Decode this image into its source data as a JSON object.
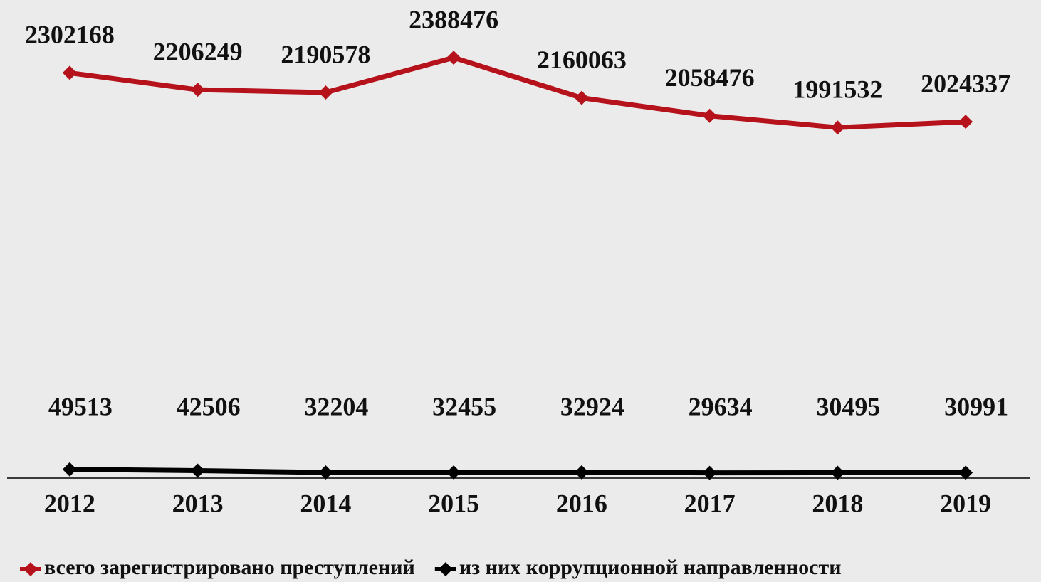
{
  "chart_data": {
    "type": "line",
    "categories": [
      "2012",
      "2013",
      "2014",
      "2015",
      "2016",
      "2017",
      "2018",
      "2019"
    ],
    "series": [
      {
        "name": "всего зарегистрировано преступлений",
        "color": "#b5121b",
        "values": [
          2302168,
          2206249,
          2190578,
          2388476,
          2160063,
          2058476,
          1991532,
          2024337
        ]
      },
      {
        "name": "из них коррупционной направленности",
        "color": "#000000",
        "values": [
          49513,
          42506,
          32204,
          32455,
          32924,
          29634,
          30495,
          30991
        ]
      }
    ],
    "ylim": [
      0,
      2700000
    ]
  }
}
